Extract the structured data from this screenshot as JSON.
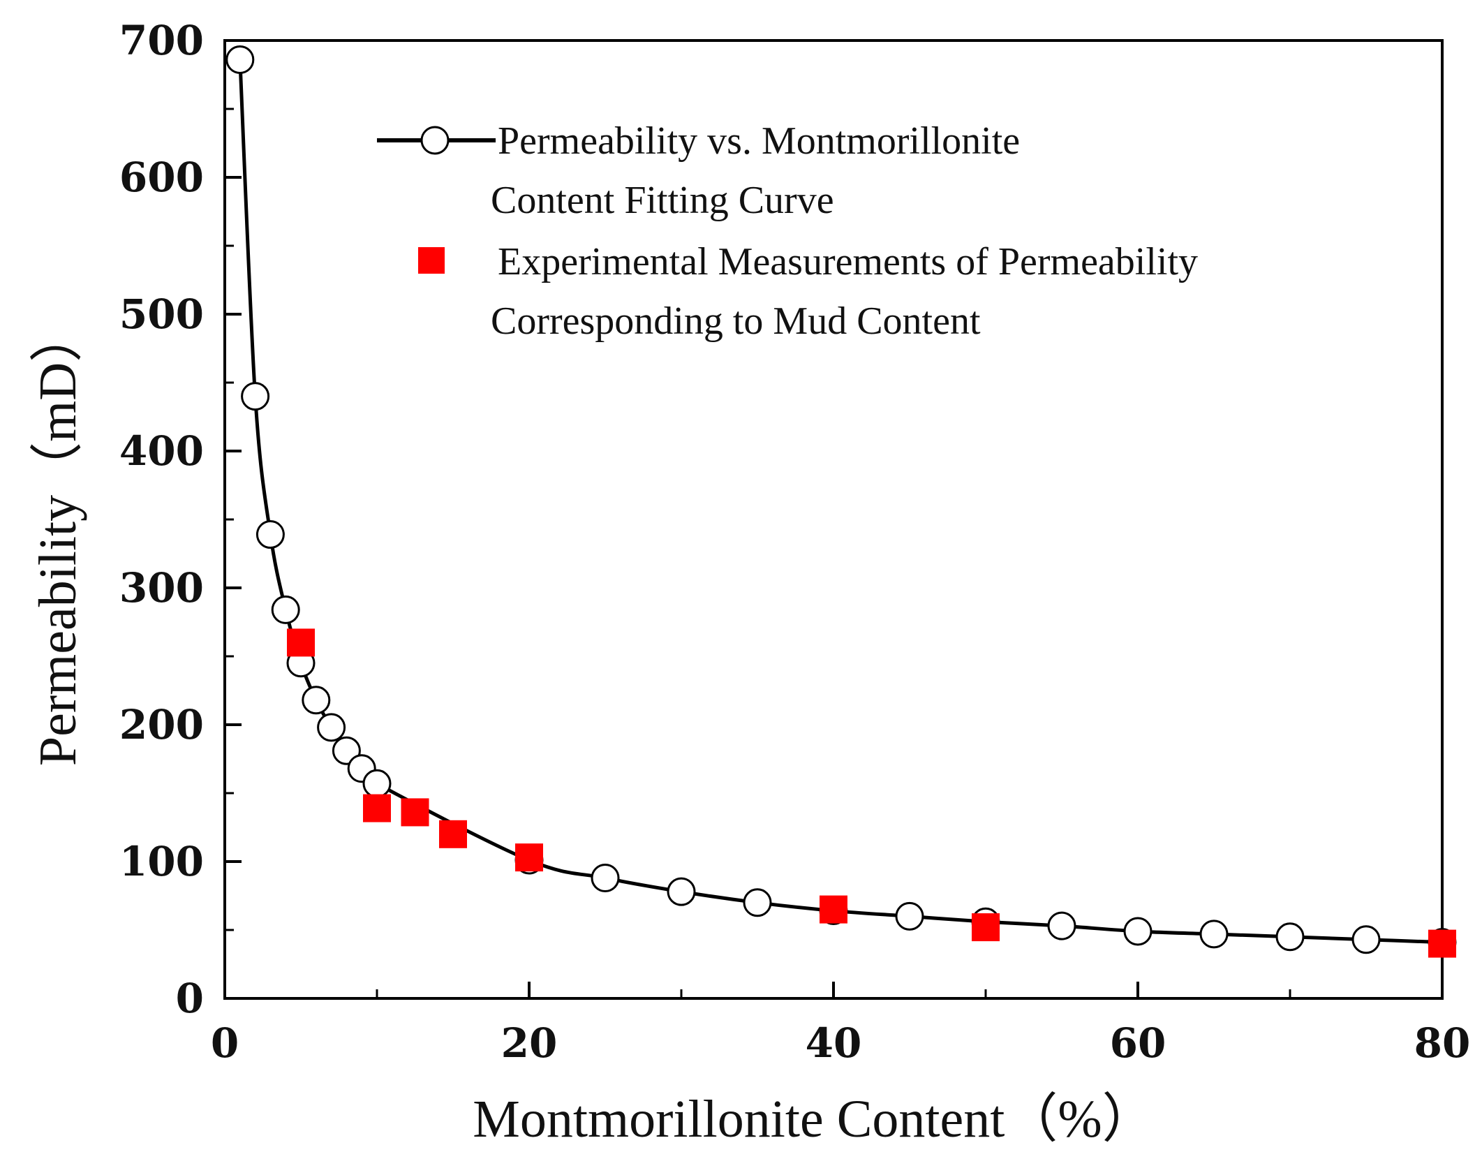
{
  "chart_data": {
    "type": "line",
    "title": "",
    "xlabel": "Montmorillonite Content（%）",
    "ylabel": "Permeability（mD）",
    "xlim": [
      0,
      80
    ],
    "ylim": [
      0,
      700
    ],
    "xticks": [
      0,
      20,
      40,
      60,
      80
    ],
    "yticks": [
      0,
      100,
      200,
      300,
      400,
      500,
      600,
      700
    ],
    "grid": false,
    "legend_position": "top-right",
    "series": [
      {
        "name": "Permeability vs. Montmorillonite Content Fitting Curve",
        "legend_lines": [
          "Permeability vs. Montmorillonite",
          "Content Fitting Curve"
        ],
        "style": "line-open-circle",
        "color": "#000000",
        "x": [
          1,
          2,
          3,
          4,
          5,
          6,
          7,
          8,
          9,
          10,
          20,
          25,
          30,
          35,
          40,
          45,
          50,
          55,
          60,
          65,
          70,
          75,
          80
        ],
        "y": [
          686,
          440,
          339,
          284,
          245,
          218,
          198,
          181,
          168,
          157,
          101,
          88,
          78,
          70,
          64,
          60,
          56,
          53,
          49,
          47,
          45,
          43,
          41
        ]
      },
      {
        "name": "Experimental Measurements of Permeability Corresponding to Mud Content",
        "legend_lines": [
          "Experimental Measurements of Permeability",
          "Corresponding to Mud Content"
        ],
        "style": "filled-square",
        "color": "#ff0000",
        "x": [
          5,
          10,
          12.5,
          15,
          20,
          40,
          50,
          80
        ],
        "y": [
          260,
          139,
          136,
          120,
          103,
          65,
          52,
          40
        ]
      }
    ]
  }
}
